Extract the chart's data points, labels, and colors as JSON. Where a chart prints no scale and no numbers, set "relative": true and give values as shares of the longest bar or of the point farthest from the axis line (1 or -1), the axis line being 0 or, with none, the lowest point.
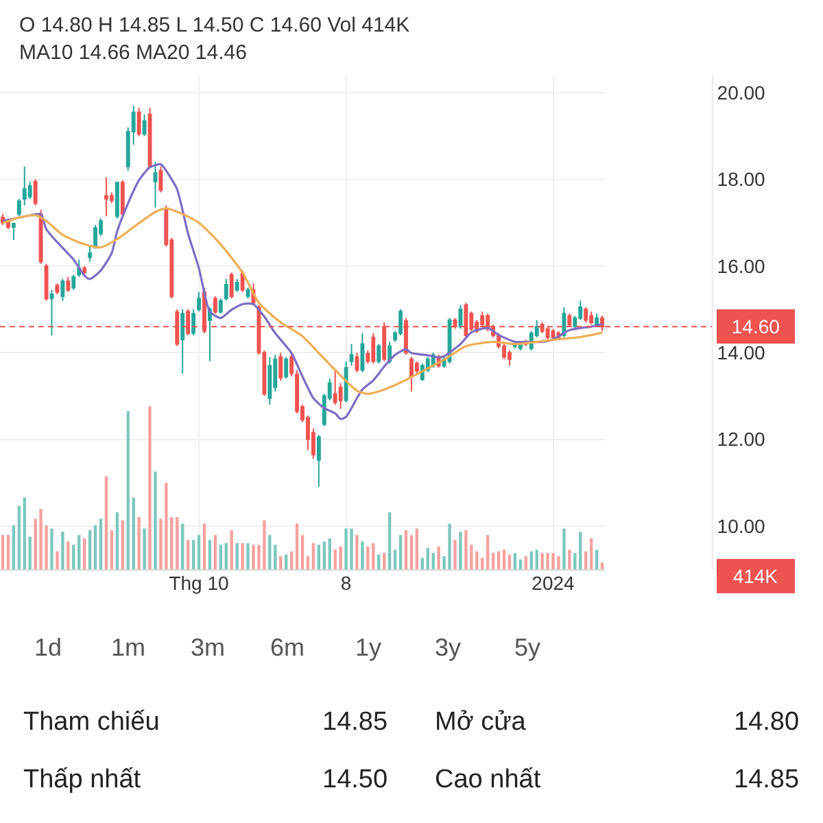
{
  "chart_data": [
    {
      "type": "candlestick",
      "categories": [
        null,
        null,
        null,
        null,
        null,
        null,
        null,
        null,
        null,
        null,
        null,
        null,
        null,
        null,
        null,
        null,
        null,
        null,
        null,
        null,
        null,
        null,
        null,
        null,
        null,
        null,
        null,
        null,
        null,
        null,
        null,
        null,
        null,
        null,
        null,
        null,
        "Thg 10",
        null,
        null,
        null,
        null,
        null,
        null,
        null,
        null,
        null,
        null,
        null,
        null,
        null,
        null,
        null,
        null,
        null,
        null,
        null,
        null,
        null,
        null,
        null,
        null,
        null,
        null,
        "8",
        null,
        null,
        null,
        null,
        null,
        null,
        null,
        null,
        null,
        null,
        null,
        null,
        null,
        null,
        null,
        null,
        null,
        null,
        null,
        null,
        null,
        null,
        null,
        null,
        null,
        null,
        null,
        null,
        null,
        null,
        null,
        null,
        null,
        null,
        null,
        null,
        null,
        "2024",
        null,
        null,
        null,
        null,
        null,
        null,
        null,
        null,
        null
      ],
      "ohlc": [
        [
          17.12,
          17.2,
          16.95,
          17.0
        ],
        [
          17.05,
          17.1,
          16.85,
          16.9
        ],
        [
          16.9,
          17.0,
          16.6,
          16.98
        ],
        [
          17.2,
          17.55,
          17.15,
          17.5
        ],
        [
          17.55,
          18.3,
          17.4,
          17.78
        ],
        [
          17.6,
          17.95,
          17.55,
          17.85
        ],
        [
          17.95,
          18.0,
          17.4,
          17.45
        ],
        [
          17.2,
          17.3,
          16.05,
          16.1
        ],
        [
          16.0,
          16.05,
          15.2,
          15.25
        ],
        [
          15.25,
          15.45,
          14.4,
          15.35
        ],
        [
          15.55,
          15.6,
          15.35,
          15.4
        ],
        [
          15.3,
          15.7,
          15.2,
          15.65
        ],
        [
          15.65,
          15.75,
          15.4,
          15.45
        ],
        [
          15.5,
          15.8,
          15.45,
          15.75
        ],
        [
          15.8,
          16.15,
          15.75,
          15.95
        ],
        [
          15.95,
          16.0,
          15.8,
          15.85
        ],
        [
          16.2,
          16.45,
          16.1,
          16.3
        ],
        [
          16.45,
          16.95,
          16.4,
          16.88
        ],
        [
          16.75,
          17.1,
          16.7,
          17.04
        ],
        [
          17.62,
          18.05,
          17.15,
          17.55
        ],
        [
          17.62,
          17.7,
          17.45,
          17.52
        ],
        [
          17.15,
          17.95,
          17.1,
          17.93
        ],
        [
          17.93,
          17.98,
          17.15,
          17.2
        ],
        [
          18.3,
          19.2,
          18.2,
          19.1
        ],
        [
          19.1,
          19.7,
          18.8,
          19.55
        ],
        [
          19.55,
          19.65,
          19.0,
          19.05
        ],
        [
          19.05,
          19.5,
          19.0,
          19.35
        ],
        [
          19.5,
          19.65,
          18.25,
          18.3
        ],
        [
          17.95,
          18.4,
          17.35,
          18.15
        ],
        [
          18.2,
          18.3,
          17.7,
          17.75
        ],
        [
          17.3,
          17.4,
          16.45,
          16.5
        ],
        [
          16.6,
          16.65,
          15.25,
          15.3
        ],
        [
          14.94,
          15.0,
          14.15,
          14.2
        ],
        [
          14.3,
          15.0,
          13.52,
          14.9
        ],
        [
          14.95,
          15.0,
          14.4,
          14.45
        ],
        [
          14.45,
          15.0,
          14.4,
          14.9
        ],
        [
          15.0,
          15.4,
          14.95,
          15.25
        ],
        [
          15.4,
          15.5,
          14.45,
          14.5
        ],
        [
          14.75,
          15.05,
          13.8,
          15.0
        ],
        [
          15.25,
          15.3,
          14.9,
          14.94
        ],
        [
          14.94,
          15.25,
          14.9,
          15.2
        ],
        [
          15.25,
          15.7,
          15.2,
          15.57
        ],
        [
          15.8,
          15.85,
          15.25,
          15.3
        ],
        [
          15.45,
          15.7,
          15.4,
          15.62
        ],
        [
          15.83,
          15.9,
          15.4,
          15.45
        ],
        [
          15.3,
          15.5,
          15.25,
          15.45
        ],
        [
          15.45,
          15.6,
          15.1,
          15.15
        ],
        [
          15.05,
          15.1,
          13.95,
          14.0
        ],
        [
          14.0,
          14.05,
          13.0,
          13.05
        ],
        [
          12.95,
          13.9,
          12.8,
          13.7
        ],
        [
          13.2,
          13.95,
          13.1,
          13.85
        ],
        [
          13.9,
          14.0,
          13.35,
          13.42
        ],
        [
          13.45,
          13.9,
          13.4,
          13.85
        ],
        [
          13.9,
          14.0,
          13.45,
          13.52
        ],
        [
          13.5,
          13.6,
          12.6,
          12.65
        ],
        [
          12.75,
          12.8,
          12.4,
          12.45
        ],
        [
          12.5,
          12.55,
          11.75,
          12.0
        ],
        [
          12.15,
          12.25,
          11.55,
          11.65
        ],
        [
          11.52,
          12.1,
          10.9,
          12.05
        ],
        [
          12.35,
          13.05,
          12.3,
          13.0
        ],
        [
          12.95,
          13.4,
          12.9,
          13.3
        ],
        [
          13.05,
          13.6,
          12.8,
          12.85
        ],
        [
          13.2,
          13.3,
          12.7,
          12.9
        ],
        [
          12.9,
          13.8,
          12.85,
          13.65
        ],
        [
          13.8,
          14.2,
          13.7,
          13.95
        ],
        [
          13.9,
          14.0,
          13.55,
          13.6
        ],
        [
          13.6,
          14.45,
          13.55,
          14.2
        ],
        [
          13.98,
          14.05,
          13.75,
          13.8
        ],
        [
          14.35,
          14.45,
          13.75,
          13.8
        ],
        [
          13.8,
          14.2,
          13.75,
          14.15
        ],
        [
          14.6,
          14.7,
          13.8,
          13.85
        ],
        [
          13.8,
          14.25,
          13.75,
          14.15
        ],
        [
          14.3,
          14.5,
          14.25,
          14.45
        ],
        [
          14.45,
          15.0,
          14.4,
          14.95
        ],
        [
          14.73,
          14.8,
          13.95,
          14.0
        ],
        [
          13.85,
          13.9,
          13.1,
          13.45
        ],
        [
          13.75,
          13.8,
          13.5,
          13.58
        ],
        [
          13.38,
          13.75,
          13.35,
          13.7
        ],
        [
          13.6,
          13.9,
          13.55,
          13.85
        ],
        [
          13.7,
          14.0,
          13.65,
          13.95
        ],
        [
          13.9,
          13.95,
          13.65,
          13.7
        ],
        [
          13.7,
          13.9,
          13.65,
          13.85
        ],
        [
          13.8,
          14.8,
          13.75,
          14.75
        ],
        [
          14.75,
          14.8,
          14.55,
          14.6
        ],
        [
          14.6,
          15.1,
          14.55,
          15.0
        ],
        [
          15.1,
          15.15,
          14.35,
          14.4
        ],
        [
          14.9,
          14.95,
          14.5,
          14.55
        ],
        [
          14.7,
          14.75,
          14.45,
          14.5
        ],
        [
          14.85,
          14.95,
          14.6,
          14.65
        ],
        [
          14.85,
          14.9,
          14.5,
          14.55
        ],
        [
          14.6,
          14.65,
          14.35,
          14.4
        ],
        [
          14.4,
          14.45,
          14.1,
          14.15
        ],
        [
          14.15,
          14.2,
          13.85,
          13.9
        ],
        [
          14.0,
          14.05,
          13.7,
          13.85
        ],
        [
          14.15,
          14.25,
          14.1,
          14.2
        ],
        [
          14.1,
          14.25,
          14.05,
          14.2
        ],
        [
          14.25,
          14.3,
          14.15,
          14.2
        ],
        [
          14.1,
          14.5,
          14.05,
          14.45
        ],
        [
          14.4,
          14.75,
          14.35,
          14.6
        ],
        [
          14.65,
          14.7,
          14.45,
          14.5
        ],
        [
          14.55,
          14.6,
          14.3,
          14.35
        ],
        [
          14.5,
          14.55,
          14.3,
          14.35
        ],
        [
          14.45,
          14.5,
          14.3,
          14.35
        ],
        [
          14.4,
          15.05,
          14.35,
          14.9
        ],
        [
          14.85,
          14.9,
          14.6,
          14.65
        ],
        [
          14.6,
          14.85,
          14.55,
          14.8
        ],
        [
          14.8,
          15.2,
          14.75,
          15.05
        ],
        [
          15.0,
          15.05,
          14.7,
          14.75
        ],
        [
          14.85,
          14.95,
          14.65,
          14.7
        ],
        [
          14.65,
          14.9,
          14.6,
          14.8
        ],
        [
          14.8,
          14.85,
          14.5,
          14.6
        ]
      ],
      "colors": [
        "#ef5350",
        "#ef5350",
        "#26a69a",
        "#26a69a",
        "#26a69a",
        "#26a69a",
        "#ef5350",
        "#ef5350",
        "#ef5350",
        "#26a69a",
        "#ef5350",
        "#26a69a",
        "#ef5350",
        "#26a69a",
        "#26a69a",
        "#ef5350",
        "#26a69a",
        "#26a69a",
        "#26a69a",
        "#ef5350",
        "#ef5350",
        "#26a69a",
        "#ef5350",
        "#26a69a",
        "#26a69a",
        "#ef5350",
        "#26a69a",
        "#ef5350",
        "#26a69a",
        "#ef5350",
        "#ef5350",
        "#ef5350",
        "#ef5350",
        "#26a69a",
        "#ef5350",
        "#26a69a",
        "#26a69a",
        "#ef5350",
        "#26a69a",
        "#ef5350",
        "#26a69a",
        "#26a69a",
        "#ef5350",
        "#26a69a",
        "#ef5350",
        "#26a69a",
        "#ef5350",
        "#ef5350",
        "#ef5350",
        "#26a69a",
        "#26a69a",
        "#ef5350",
        "#26a69a",
        "#ef5350",
        "#ef5350",
        "#ef5350",
        "#ef5350",
        "#ef5350",
        "#26a69a",
        "#26a69a",
        "#26a69a",
        "#ef5350",
        "#ef5350",
        "#26a69a",
        "#26a69a",
        "#ef5350",
        "#26a69a",
        "#ef5350",
        "#ef5350",
        "#26a69a",
        "#ef5350",
        "#26a69a",
        "#26a69a",
        "#26a69a",
        "#ef5350",
        "#ef5350",
        "#ef5350",
        "#26a69a",
        "#26a69a",
        "#26a69a",
        "#ef5350",
        "#26a69a",
        "#26a69a",
        "#ef5350",
        "#26a69a",
        "#ef5350",
        "#ef5350",
        "#ef5350",
        "#ef5350",
        "#ef5350",
        "#ef5350",
        "#ef5350",
        "#ef5350",
        "#ef5350",
        "#26a69a",
        "#26a69a",
        "#ef5350",
        "#26a69a",
        "#26a69a",
        "#ef5350",
        "#ef5350",
        "#ef5350",
        "#ef5350",
        "#26a69a",
        "#ef5350",
        "#26a69a",
        "#26a69a",
        "#ef5350",
        "#ef5350",
        "#26a69a",
        "#ef5350"
      ],
      "series": [
        {
          "type": "line",
          "color": "#7e6cc4",
          "values": [
            17.04,
            null,
            17.09,
            null,
            null,
            17.17,
            null,
            17.2,
            16.85,
            null,
            16.55,
            null,
            null,
            16.15,
            null,
            15.78,
            15.7,
            null,
            15.9,
            null,
            16.3,
            16.8,
            null,
            17.45,
            null,
            17.98,
            null,
            18.28,
            null,
            18.35,
            18.2,
            null,
            17.77,
            null,
            16.75,
            null,
            15.95,
            null,
            14.95,
            null,
            14.8,
            null,
            14.99,
            null,
            15.12,
            null,
            15.12,
            null,
            14.83,
            null,
            14.45,
            null,
            null,
            13.99,
            null,
            13.45,
            null,
            12.95,
            null,
            12.72,
            null,
            12.6,
            12.47,
            12.52,
            null,
            12.95,
            13.15,
            null,
            13.36,
            null,
            13.68,
            null,
            13.95,
            null,
            14.08,
            13.99,
            null,
            null,
            13.94,
            null,
            13.89,
            13.92,
            null,
            null,
            14.2,
            null,
            14.47,
            null,
            null,
            14.57,
            null,
            14.41,
            null,
            null,
            14.25,
            null,
            14.25,
            null,
            null,
            14.25,
            null,
            14.31,
            null,
            null,
            14.52,
            null,
            14.57,
            null,
            14.6,
            null,
            14.66
          ]
        },
        {
          "type": "line",
          "color": "#eeae55",
          "values": [
            16.99,
            null,
            null,
            17.12,
            null,
            null,
            17.17,
            null,
            17.04,
            null,
            null,
            16.72,
            null,
            null,
            null,
            16.5,
            null,
            null,
            16.43,
            null,
            null,
            16.62,
            null,
            null,
            null,
            16.99,
            null,
            null,
            17.25,
            null,
            17.33,
            null,
            null,
            17.2,
            null,
            null,
            17.0,
            null,
            null,
            null,
            16.5,
            null,
            null,
            null,
            15.85,
            null,
            null,
            15.15,
            null,
            null,
            null,
            14.7,
            null,
            null,
            null,
            14.38,
            null,
            null,
            13.99,
            null,
            null,
            13.6,
            null,
            null,
            null,
            13.12,
            null,
            13.05,
            null,
            null,
            13.15,
            null,
            null,
            13.31,
            null,
            null,
            null,
            13.57,
            null,
            null,
            null,
            13.84,
            null,
            null,
            null,
            14.15,
            null,
            null,
            null,
            null,
            14.25,
            null,
            null,
            null,
            14.2,
            null,
            null,
            null,
            14.25,
            null,
            null,
            null,
            14.31,
            null,
            null,
            null,
            14.36,
            null,
            null,
            null,
            14.46
          ]
        }
      ],
      "ylim": [
        9.0,
        20.4
      ],
      "yticks": [
        {
          "value": 10,
          "label": "10.00"
        },
        {
          "value": 12,
          "label": "12.00"
        },
        {
          "value": 14,
          "label": "14.00"
        },
        {
          "value": 16,
          "label": "16.00"
        },
        {
          "value": 18,
          "label": "18.00"
        },
        {
          "value": 20,
          "label": "20.00"
        }
      ],
      "grid": true,
      "ref_lines": [
        {
          "axis": "y",
          "value": 14.6,
          "label": "14.60",
          "color": "#ef5350",
          "line_style": "dashed"
        }
      ],
      "annotations": [
        "O 14.80 H 14.85 L 14.50 C 14.60 Vol 414K",
        "MA10 14.66 MA20 14.46"
      ]
    },
    {
      "type": "bar",
      "relative": true,
      "categories": [
        null,
        null,
        null,
        null,
        null,
        null,
        null,
        null,
        null,
        null,
        null,
        null,
        null,
        null,
        null,
        null,
        null,
        null,
        null,
        null,
        null,
        null,
        null,
        null,
        null,
        null,
        null,
        null,
        null,
        null,
        null,
        null,
        null,
        null,
        null,
        null,
        null,
        null,
        null,
        null,
        null,
        null,
        null,
        null,
        null,
        null,
        null,
        null,
        null,
        null,
        null,
        null,
        null,
        null,
        null,
        null,
        null,
        null,
        null,
        null,
        null,
        null,
        null,
        null,
        null,
        null,
        null,
        null,
        null,
        null,
        null,
        null,
        null,
        null,
        null,
        null,
        null,
        null,
        null,
        null,
        null,
        null,
        null,
        null,
        null,
        null,
        null,
        null,
        null,
        null,
        null,
        null,
        null,
        null,
        null,
        null,
        null,
        null,
        null,
        null,
        null,
        null,
        null,
        null,
        null,
        null,
        null,
        null,
        null,
        null,
        null
      ],
      "values": [
        0.21,
        0.21,
        0.27,
        0.39,
        0.44,
        0.2,
        0.31,
        0.37,
        0.27,
        0.25,
        0.11,
        0.23,
        0.17,
        0.15,
        0.21,
        0.19,
        0.24,
        0.27,
        0.31,
        0.57,
        0.24,
        0.35,
        0.3,
        0.97,
        0.44,
        0.32,
        0.25,
        1.0,
        0.6,
        0.31,
        0.53,
        0.32,
        0.32,
        0.28,
        0.18,
        0.18,
        0.21,
        0.28,
        0.18,
        0.21,
        0.15,
        0.16,
        0.24,
        0.16,
        0.16,
        0.16,
        0.15,
        0.15,
        0.3,
        0.21,
        0.15,
        0.08,
        0.09,
        0.11,
        0.28,
        0.21,
        0.08,
        0.16,
        0.15,
        0.17,
        0.19,
        0.12,
        0.14,
        0.25,
        0.25,
        0.21,
        0.17,
        0.14,
        0.16,
        0.09,
        0.1,
        0.35,
        0.12,
        0.21,
        0.24,
        0.21,
        0.25,
        0.07,
        0.13,
        0.1,
        0.14,
        0.08,
        0.28,
        0.18,
        0.23,
        0.24,
        0.15,
        0.11,
        0.07,
        0.21,
        0.1,
        0.11,
        0.12,
        0.09,
        0.1,
        0.06,
        0.08,
        0.11,
        0.12,
        0.1,
        0.1,
        0.1,
        0.08,
        0.25,
        0.12,
        0.1,
        0.23,
        0.11,
        0.19,
        0.12,
        0.04
      ],
      "colors": [
        "#f5a19e",
        "#f5a19e",
        "#7cc7bd",
        "#7cc7bd",
        "#7cc7bd",
        "#7cc7bd",
        "#f5a19e",
        "#f5a19e",
        "#f5a19e",
        "#7cc7bd",
        "#f5a19e",
        "#7cc7bd",
        "#f5a19e",
        "#7cc7bd",
        "#7cc7bd",
        "#f5a19e",
        "#7cc7bd",
        "#7cc7bd",
        "#7cc7bd",
        "#f5a19e",
        "#f5a19e",
        "#7cc7bd",
        "#f5a19e",
        "#7cc7bd",
        "#7cc7bd",
        "#f5a19e",
        "#7cc7bd",
        "#f5a19e",
        "#7cc7bd",
        "#f5a19e",
        "#f5a19e",
        "#f5a19e",
        "#f5a19e",
        "#7cc7bd",
        "#f5a19e",
        "#7cc7bd",
        "#7cc7bd",
        "#f5a19e",
        "#7cc7bd",
        "#f5a19e",
        "#7cc7bd",
        "#7cc7bd",
        "#f5a19e",
        "#7cc7bd",
        "#f5a19e",
        "#7cc7bd",
        "#f5a19e",
        "#f5a19e",
        "#f5a19e",
        "#7cc7bd",
        "#7cc7bd",
        "#f5a19e",
        "#7cc7bd",
        "#f5a19e",
        "#f5a19e",
        "#f5a19e",
        "#f5a19e",
        "#f5a19e",
        "#7cc7bd",
        "#7cc7bd",
        "#7cc7bd",
        "#f5a19e",
        "#f5a19e",
        "#7cc7bd",
        "#7cc7bd",
        "#f5a19e",
        "#7cc7bd",
        "#f5a19e",
        "#f5a19e",
        "#7cc7bd",
        "#f5a19e",
        "#7cc7bd",
        "#7cc7bd",
        "#7cc7bd",
        "#f5a19e",
        "#f5a19e",
        "#f5a19e",
        "#7cc7bd",
        "#7cc7bd",
        "#7cc7bd",
        "#f5a19e",
        "#7cc7bd",
        "#7cc7bd",
        "#f5a19e",
        "#7cc7bd",
        "#f5a19e",
        "#f5a19e",
        "#f5a19e",
        "#f5a19e",
        "#f5a19e",
        "#f5a19e",
        "#f5a19e",
        "#f5a19e",
        "#f5a19e",
        "#7cc7bd",
        "#7cc7bd",
        "#f5a19e",
        "#7cc7bd",
        "#7cc7bd",
        "#f5a19e",
        "#f5a19e",
        "#f5a19e",
        "#f5a19e",
        "#7cc7bd",
        "#f5a19e",
        "#7cc7bd",
        "#7cc7bd",
        "#f5a19e",
        "#f5a19e",
        "#7cc7bd",
        "#f5a19e"
      ],
      "annotations": [
        "414K",
        "1d",
        "1m",
        "3m",
        "6m",
        "1y",
        "3y",
        "5y",
        "Tham chiếu",
        "14.85",
        "Mở cửa",
        "14.80",
        "Thấp nhất",
        "14.50",
        "Cao nhất",
        "14.85"
      ]
    }
  ]
}
